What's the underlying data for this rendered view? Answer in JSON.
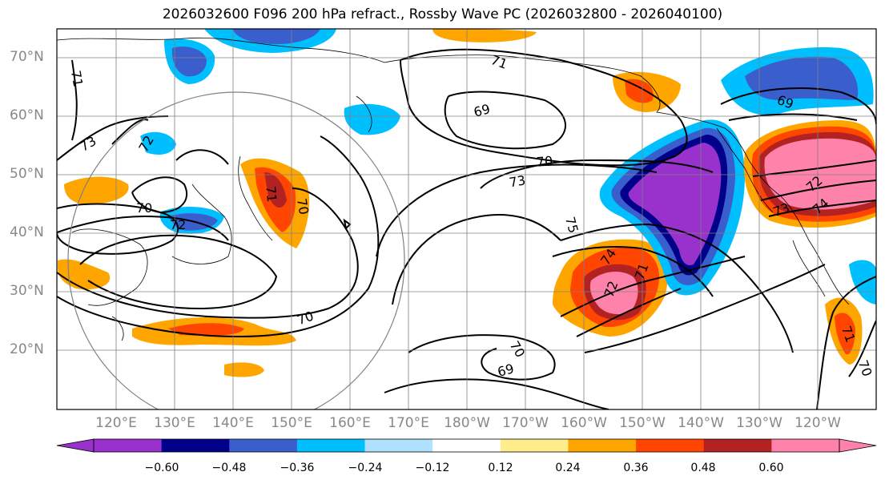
{
  "title": "2026032600 F096 200 hPa refract., Rossby Wave PC (2026032800 - 2026040100)",
  "lat_ticks": [
    "70°N",
    "60°N",
    "50°N",
    "40°N",
    "30°N",
    "20°N"
  ],
  "lon_ticks": [
    "120°E",
    "130°E",
    "140°E",
    "150°E",
    "160°E",
    "170°E",
    "180°W",
    "170°W",
    "160°W",
    "150°W",
    "140°W",
    "130°W",
    "120°W"
  ],
  "colorbar": {
    "ticks": [
      "−0.60",
      "−0.48",
      "−0.36",
      "−0.24",
      "−0.12",
      "0.12",
      "0.24",
      "0.36",
      "0.48",
      "0.60"
    ],
    "colors": [
      "#9932cc",
      "#00008b",
      "#3a5fcd",
      "#00bfff",
      "#b0e2ff",
      "#ffffff",
      "#ffec8b",
      "#ffa500",
      "#ff4500",
      "#b22222",
      "#ff82ab"
    ]
  },
  "contour_labels": [
    "71",
    "73",
    "72",
    "70",
    "72",
    "71",
    "70",
    "70",
    "69",
    "71",
    "73",
    "75",
    "74",
    "72",
    "71",
    "70",
    "69",
    "70",
    "69",
    "72",
    "73",
    "74",
    "71",
    "70"
  ]
}
